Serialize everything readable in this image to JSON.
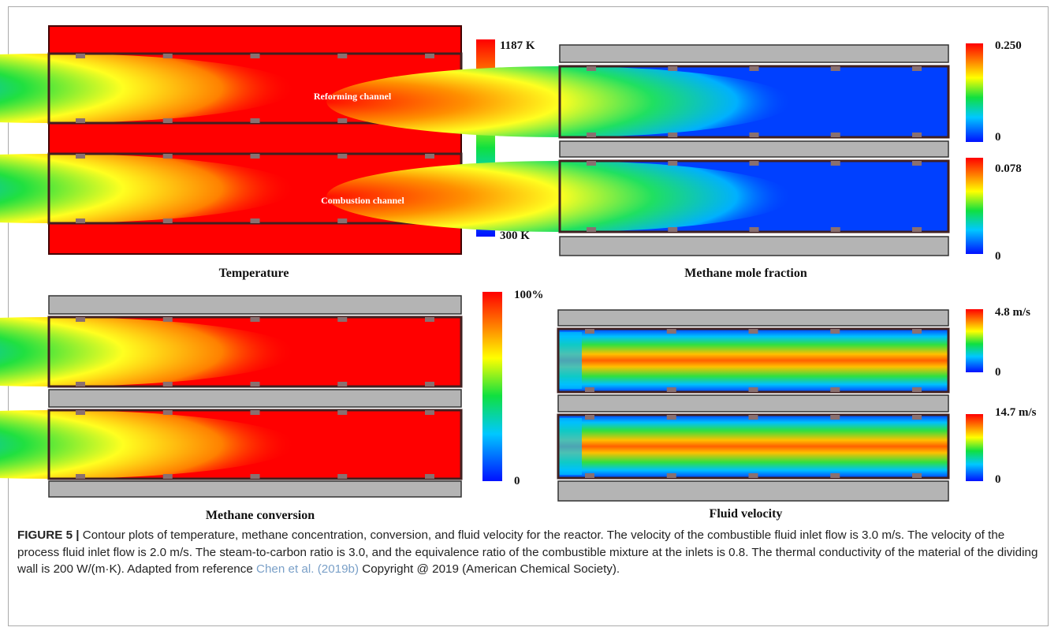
{
  "figure": {
    "panels": [
      {
        "caption": "Temperature",
        "scales": [
          {
            "max": "1187 K",
            "min": "300 K"
          }
        ],
        "labels": [
          "Reforming channel",
          "Combustion channel"
        ]
      },
      {
        "caption": "Methane mole fraction",
        "scales": [
          {
            "max": "0.250",
            "min": "0"
          },
          {
            "max": "0.078",
            "min": "0"
          }
        ]
      },
      {
        "caption": "Methane conversion",
        "scales": [
          {
            "max": "100%",
            "min": "0"
          }
        ]
      },
      {
        "caption": "Fluid velocity",
        "scales": [
          {
            "max": "4.8 m/s",
            "min": "0"
          },
          {
            "max": "14.7 m/s",
            "min": "0"
          }
        ]
      }
    ],
    "caption": {
      "label": "FIGURE 5 |",
      "text": " Contour plots of temperature, methane concentration, conversion, and fluid velocity for the reactor. The velocity of the combustible fluid inlet flow is 3.0 m/s. The velocity of the process fluid inlet flow is 2.0 m/s. The steam-to-carbon ratio is 3.0, and the equivalence ratio of the combustible mixture at the inlets is 0.8. The thermal conductivity of the material of the dividing wall is 200 W/(m·K). Adapted from reference ",
      "link": "Chen et al. (2019b)",
      "after": " Copyright @ 2019 (American Chemical Society)."
    }
  }
}
